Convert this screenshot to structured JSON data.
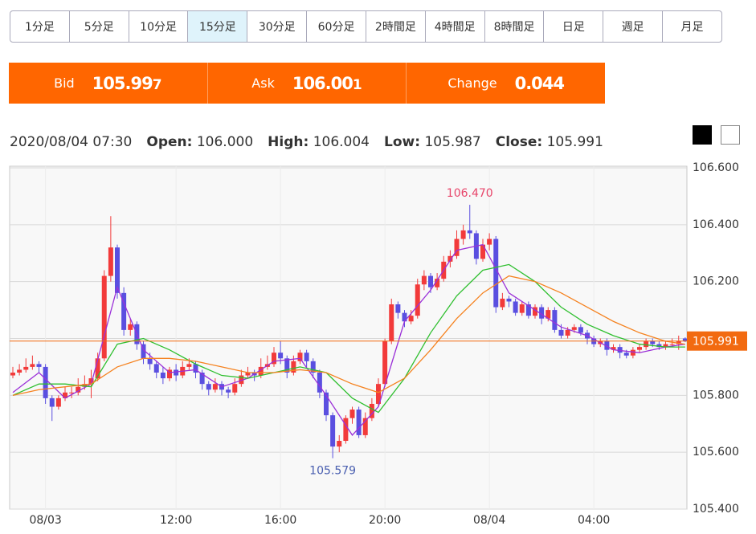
{
  "toolbar": {
    "buttons": [
      "1分足",
      "5分足",
      "10分足",
      "15分足",
      "30分足",
      "60分足",
      "2時間足",
      "4時間足",
      "8時間足",
      "日足",
      "週足",
      "月足"
    ],
    "active": 3
  },
  "quotes": [
    {
      "label": "Bid",
      "main": "105.99",
      "pip": "7"
    },
    {
      "label": "Ask",
      "main": "106.00",
      "pip": "1"
    },
    {
      "label": "Change",
      "main": "0.044"
    }
  ],
  "info": {
    "time": "2020/08/04 07:30",
    "items": [
      {
        "label": "Open:",
        "value": "106.000"
      },
      {
        "label": "High:",
        "value": "106.004"
      },
      {
        "label": "Low:",
        "value": "105.987"
      },
      {
        "label": "Close:",
        "value": "105.991"
      }
    ]
  },
  "chart_data": {
    "type": "candlestick",
    "open": [
      105.87,
      105.88,
      105.89,
      105.9,
      105.91,
      105.9,
      105.79,
      105.76,
      105.79,
      105.81,
      105.81,
      105.83,
      105.84,
      105.86,
      105.93,
      106.22,
      106.32,
      106.16,
      106.03,
      106.05,
      105.98,
      105.93,
      105.91,
      105.88,
      105.86,
      105.89,
      105.87,
      105.9,
      105.91,
      105.88,
      105.84,
      105.82,
      105.84,
      105.82,
      105.81,
      105.84,
      105.87,
      105.88,
      105.87,
      105.9,
      105.91,
      105.95,
      105.93,
      105.88,
      105.92,
      105.95,
      105.92,
      105.88,
      105.81,
      105.73,
      105.62,
      105.64,
      105.72,
      105.75,
      105.66,
      105.72,
      105.77,
      105.84,
      105.99,
      106.12,
      106.09,
      106.06,
      106.08,
      106.19,
      106.22,
      106.18,
      106.21,
      106.27,
      106.29,
      106.35,
      106.38,
      106.37,
      106.28,
      106.33,
      106.35,
      106.11,
      106.14,
      106.13,
      106.09,
      106.12,
      106.08,
      106.11,
      106.07,
      106.1,
      106.03,
      106.01,
      106.03,
      106.04,
      106.02,
      106.0,
      105.98,
      105.99,
      105.96,
      105.97,
      105.95,
      105.94,
      105.96,
      105.97,
      105.99,
      105.98,
      105.97,
      105.98,
      105.98,
      106.0
    ],
    "high": [
      105.9,
      105.91,
      105.93,
      105.94,
      105.92,
      105.91,
      105.8,
      105.8,
      105.83,
      105.83,
      105.86,
      105.87,
      105.89,
      105.95,
      106.24,
      106.43,
      106.33,
      106.18,
      106.07,
      106.06,
      105.99,
      105.95,
      105.92,
      105.9,
      105.9,
      105.91,
      105.92,
      105.93,
      105.92,
      105.89,
      105.85,
      105.86,
      105.85,
      105.83,
      105.86,
      105.89,
      105.9,
      105.89,
      105.93,
      105.94,
      105.97,
      105.99,
      105.94,
      105.94,
      105.96,
      105.96,
      105.93,
      105.89,
      105.82,
      105.74,
      105.66,
      105.73,
      105.76,
      105.76,
      105.74,
      105.79,
      105.86,
      106.0,
      106.14,
      106.13,
      106.1,
      106.1,
      106.21,
      106.24,
      106.23,
      106.23,
      106.29,
      106.31,
      106.38,
      106.4,
      106.47,
      106.38,
      106.35,
      106.37,
      106.36,
      106.16,
      106.15,
      106.14,
      106.13,
      106.13,
      106.12,
      106.12,
      106.11,
      106.11,
      106.05,
      106.04,
      106.05,
      106.05,
      106.03,
      106.01,
      106.0,
      106.0,
      105.98,
      105.98,
      105.96,
      105.97,
      105.98,
      106.0,
      106.0,
      105.99,
      105.99,
      106.0,
      106.01,
      106.004
    ],
    "low": [
      105.86,
      105.87,
      105.88,
      105.89,
      105.88,
      105.77,
      105.71,
      105.75,
      105.78,
      105.79,
      105.8,
      105.82,
      105.79,
      105.85,
      105.92,
      106.2,
      106.14,
      106.01,
      106.01,
      105.96,
      105.91,
      105.89,
      105.86,
      105.84,
      105.85,
      105.85,
      105.86,
      105.89,
      105.86,
      105.82,
      105.8,
      105.81,
      105.8,
      105.79,
      105.8,
      105.83,
      105.86,
      105.85,
      105.86,
      105.89,
      105.9,
      105.91,
      105.86,
      105.87,
      105.91,
      105.9,
      105.86,
      105.79,
      105.71,
      105.579,
      105.6,
      105.63,
      105.7,
      105.65,
      105.65,
      105.71,
      105.76,
      105.83,
      105.98,
      106.07,
      106.04,
      106.05,
      106.07,
      106.17,
      106.16,
      106.17,
      106.2,
      106.25,
      106.28,
      106.33,
      106.35,
      106.26,
      106.27,
      106.31,
      106.09,
      106.1,
      106.11,
      106.08,
      106.08,
      106.07,
      106.07,
      106.05,
      106.06,
      106.02,
      106.0,
      106.0,
      106.02,
      106.01,
      105.98,
      105.97,
      105.97,
      105.94,
      105.95,
      105.93,
      105.93,
      105.93,
      105.95,
      105.96,
      105.97,
      105.96,
      105.96,
      105.97,
      105.96,
      105.987
    ],
    "close": [
      105.88,
      105.89,
      105.9,
      105.91,
      105.9,
      105.79,
      105.76,
      105.79,
      105.81,
      105.81,
      105.83,
      105.84,
      105.86,
      105.93,
      106.22,
      106.32,
      106.16,
      106.03,
      106.05,
      105.98,
      105.93,
      105.91,
      105.88,
      105.86,
      105.89,
      105.87,
      105.9,
      105.91,
      105.88,
      105.84,
      105.82,
      105.84,
      105.82,
      105.81,
      105.84,
      105.87,
      105.88,
      105.87,
      105.9,
      105.91,
      105.95,
      105.93,
      105.88,
      105.92,
      105.95,
      105.92,
      105.88,
      105.81,
      105.73,
      105.62,
      105.64,
      105.72,
      105.75,
      105.66,
      105.72,
      105.77,
      105.84,
      105.99,
      106.12,
      106.09,
      106.06,
      106.08,
      106.19,
      106.22,
      106.18,
      106.21,
      106.27,
      106.29,
      106.35,
      106.38,
      106.37,
      106.28,
      106.33,
      106.35,
      106.11,
      106.14,
      106.13,
      106.09,
      106.12,
      106.08,
      106.11,
      106.07,
      106.1,
      106.03,
      106.01,
      106.03,
      106.04,
      106.02,
      106.0,
      105.98,
      105.99,
      105.96,
      105.97,
      105.95,
      105.94,
      105.96,
      105.97,
      105.99,
      105.98,
      105.97,
      105.98,
      105.98,
      105.99,
      105.991
    ],
    "up_color": "#f23a3a",
    "down_color": "#5a4fe0",
    "lines": [
      {
        "color": "#9b30d8",
        "x": [
          0,
          4,
          8,
          12,
          16,
          20,
          24,
          28,
          32,
          36,
          40,
          44,
          48,
          52,
          56,
          60,
          64,
          68,
          72,
          76,
          80,
          84,
          88,
          92,
          96,
          100,
          103
        ],
        "values": [
          105.81,
          105.88,
          105.79,
          105.84,
          106.18,
          105.96,
          105.88,
          105.89,
          105.83,
          105.86,
          105.92,
          105.93,
          105.8,
          105.66,
          105.76,
          106.06,
          106.17,
          106.31,
          106.33,
          106.16,
          106.1,
          106.04,
          106.01,
          105.96,
          105.95,
          105.97,
          105.98
        ]
      },
      {
        "color": "#2fbf2f",
        "x": [
          0,
          4,
          8,
          12,
          16,
          20,
          24,
          28,
          32,
          36,
          40,
          44,
          48,
          52,
          56,
          60,
          64,
          68,
          72,
          76,
          80,
          84,
          88,
          92,
          96,
          100,
          103
        ],
        "values": [
          105.8,
          105.84,
          105.84,
          105.83,
          105.98,
          106.0,
          105.96,
          105.91,
          105.87,
          105.86,
          105.88,
          105.9,
          105.88,
          105.79,
          105.74,
          105.86,
          106.02,
          106.15,
          106.24,
          106.26,
          106.2,
          106.11,
          106.05,
          106.01,
          105.98,
          105.97,
          105.97
        ]
      },
      {
        "color": "#f5821f",
        "x": [
          0,
          4,
          8,
          12,
          16,
          20,
          24,
          28,
          32,
          36,
          40,
          44,
          48,
          52,
          56,
          60,
          64,
          68,
          72,
          76,
          80,
          84,
          88,
          92,
          96,
          100,
          103
        ],
        "values": [
          105.8,
          105.82,
          105.83,
          105.84,
          105.9,
          105.93,
          105.93,
          105.92,
          105.9,
          105.88,
          105.88,
          105.89,
          105.88,
          105.84,
          105.81,
          105.86,
          105.96,
          106.07,
          106.16,
          106.22,
          106.2,
          106.16,
          106.11,
          106.06,
          106.02,
          105.99,
          105.98
        ]
      }
    ],
    "max_label": "106.470",
    "min_label": "105.579",
    "max_color": "#e8456a",
    "min_color": "#4a5fb0",
    "last_color": "#f26a10",
    "ylim": [
      105.4,
      106.6
    ],
    "yticks": [
      {
        "value": 105.4,
        "label": "105.400"
      },
      {
        "value": 105.6,
        "label": "105.600"
      },
      {
        "value": 105.8,
        "label": "105.800"
      },
      {
        "value": 106.0,
        "label": "106.000"
      },
      {
        "value": 106.2,
        "label": "106.200"
      },
      {
        "value": 106.4,
        "label": "106.400"
      },
      {
        "value": 106.6,
        "label": "106.600"
      }
    ],
    "xticks": [
      {
        "value": 5,
        "label": "08/03"
      },
      {
        "value": 25,
        "label": "12:00"
      },
      {
        "value": 41,
        "label": "16:00"
      },
      {
        "value": 57,
        "label": "20:00"
      },
      {
        "value": 73,
        "label": "08/04"
      },
      {
        "value": 89,
        "label": "04:00"
      }
    ],
    "grid": true
  }
}
